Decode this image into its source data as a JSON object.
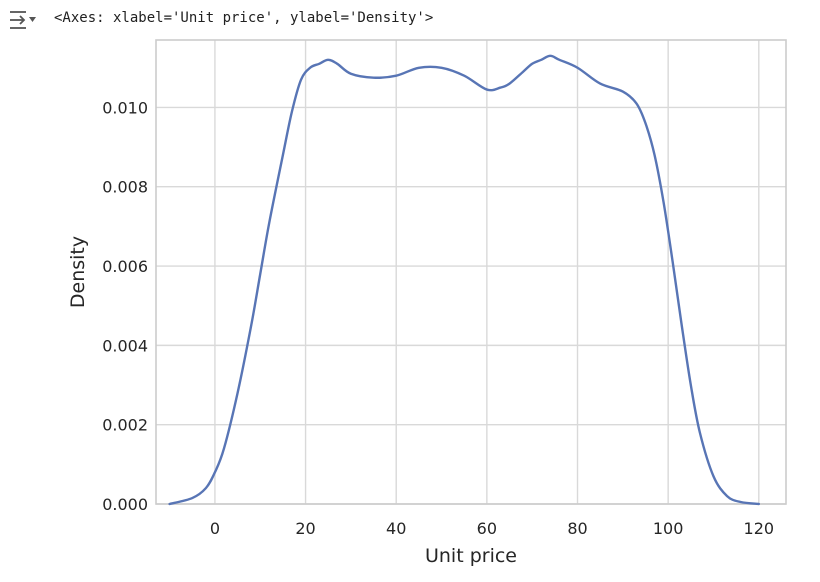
{
  "cell_output": {
    "icon": "output-collapse-icon",
    "repr_text": "<Axes: xlabel='Unit price', ylabel='Density'>"
  },
  "chart_data": {
    "type": "line",
    "title": "",
    "xlabel": "Unit price",
    "ylabel": "Density",
    "xlim": [
      -13,
      126
    ],
    "ylim": [
      0,
      0.0117
    ],
    "xticks": [
      0,
      20,
      40,
      60,
      80,
      100,
      120
    ],
    "xtick_labels": [
      "0",
      "20",
      "40",
      "60",
      "80",
      "100",
      "120"
    ],
    "yticks": [
      0.0,
      0.002,
      0.004,
      0.006,
      0.008,
      0.01
    ],
    "ytick_labels": [
      "0.000",
      "0.002",
      "0.004",
      "0.006",
      "0.008",
      "0.010"
    ],
    "grid": true,
    "colors": {
      "line": "#5875b5",
      "grid": "#d9d9d9",
      "spine": "#cccccc"
    },
    "series": [
      {
        "x": [
          -10,
          -5,
          -2,
          0,
          2,
          5,
          8,
          10,
          12,
          15,
          17,
          19,
          21,
          23,
          25,
          27,
          30,
          35,
          40,
          45,
          50,
          55,
          60,
          63,
          65,
          68,
          70,
          72,
          74,
          76,
          80,
          85,
          90,
          93,
          95,
          97,
          99,
          101,
          103,
          105,
          107,
          110,
          113,
          116,
          120
        ],
        "y": [
          0.0,
          0.00015,
          0.0004,
          0.0008,
          0.0014,
          0.0028,
          0.0045,
          0.0058,
          0.0071,
          0.0088,
          0.0099,
          0.0107,
          0.011,
          0.0111,
          0.0112,
          0.0111,
          0.01085,
          0.01075,
          0.0108,
          0.011,
          0.011,
          0.0108,
          0.01045,
          0.0105,
          0.0106,
          0.0109,
          0.0111,
          0.0112,
          0.0113,
          0.0112,
          0.011,
          0.0106,
          0.0104,
          0.0101,
          0.0096,
          0.0088,
          0.0076,
          0.0061,
          0.0045,
          0.003,
          0.0018,
          0.0007,
          0.0002,
          5e-05,
          0.0
        ]
      }
    ]
  }
}
